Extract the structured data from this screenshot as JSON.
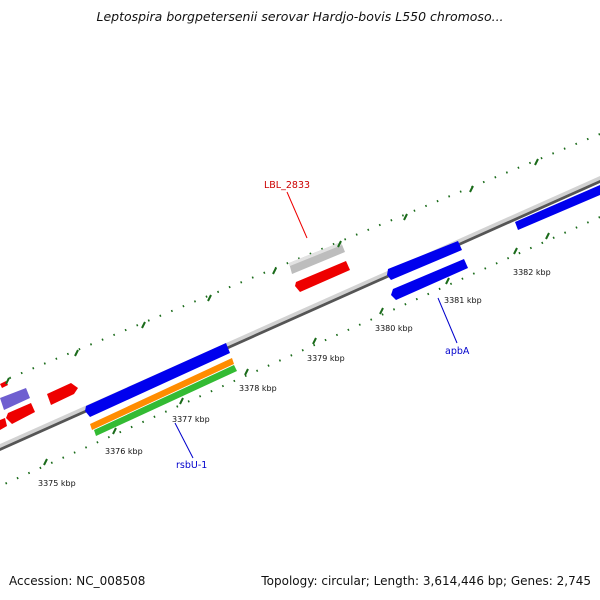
{
  "title": "Leptospira borgpetersenii serovar Hardjo-bovis L550 chromoso...",
  "footer": {
    "accession": "Accession: NC_008508",
    "summary": "Topology: circular; Length: 3,614,446 bp; Genes: 2,745"
  },
  "ticks": [
    "3375 kbp",
    "3376 kbp",
    "3377 kbp",
    "3378 kbp",
    "3379 kbp",
    "3380 kbp",
    "3381 kbp",
    "3382 kbp"
  ],
  "gene_labels": {
    "lbl": "LBL_2833",
    "rsbu": "rsbU-1",
    "apba": "apbA"
  },
  "colors": {
    "blue": "#0000ee",
    "red": "#ee0000",
    "gray": "#bdbdbd",
    "orange": "#ff8c00",
    "green": "#33bb33",
    "lavender": "#6f5fd0",
    "tick": "#1a6b1a",
    "label_red": "#cc0000",
    "label_blue": "#0000cc"
  }
}
